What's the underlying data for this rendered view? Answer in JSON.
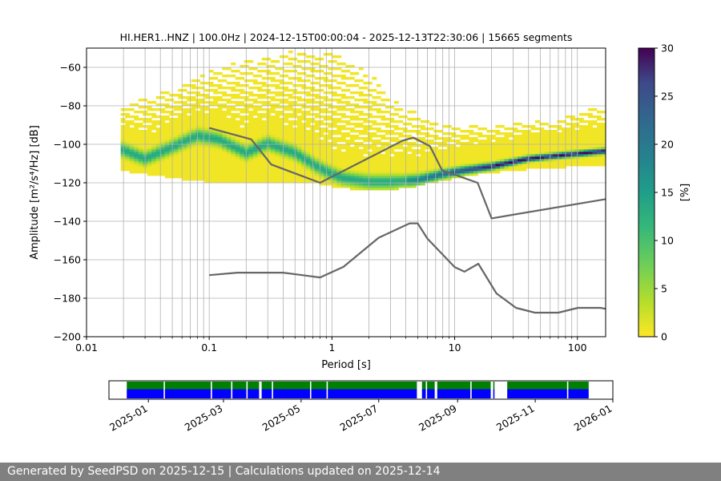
{
  "footer_text": "Generated by SeedPSD on 2025-12-15 | Calculations updated on 2025-12-14",
  "chart_data": {
    "type": "heatmap",
    "title": "HI.HER1..HNZ | 100.0Hz | 2024-12-15T00:00:04 - 2025-12-13T22:30:06 | 15665 segments",
    "xlabel": "Period [s]",
    "ylabel": "Amplitude [m²/s⁴/Hz] [dB]",
    "xscale": "log",
    "xlim": [
      0.01,
      170
    ],
    "ylim": [
      -200,
      -50
    ],
    "x_ticks": [
      0.01,
      0.1,
      1,
      10,
      100
    ],
    "x_tick_labels": [
      "0.01",
      "0.1",
      "1",
      "10",
      "100"
    ],
    "y_ticks": [
      -200,
      -180,
      -160,
      -140,
      -120,
      -100,
      -80,
      -60
    ],
    "y_tick_labels": [
      "−200",
      "−180",
      "−160",
      "−140",
      "−120",
      "−100",
      "−80",
      "−60"
    ],
    "grid": true,
    "colorbar": {
      "label": "[%]",
      "range": [
        0,
        30
      ],
      "ticks": [
        0,
        5,
        10,
        15,
        20,
        25,
        30
      ],
      "tick_labels": [
        "0",
        "5",
        "10",
        "15",
        "20",
        "25",
        "30"
      ],
      "colormap": "viridis_r"
    },
    "psd_mode": [
      [
        0.019,
        -103
      ],
      [
        0.03,
        -108
      ],
      [
        0.05,
        -102
      ],
      [
        0.08,
        -96
      ],
      [
        0.12,
        -98
      ],
      [
        0.2,
        -105
      ],
      [
        0.3,
        -100
      ],
      [
        0.5,
        -105
      ],
      [
        0.8,
        -113
      ],
      [
        1.2,
        -118
      ],
      [
        2,
        -120
      ],
      [
        3,
        -120
      ],
      [
        5,
        -119
      ],
      [
        8,
        -116
      ],
      [
        12,
        -114
      ],
      [
        20,
        -112
      ],
      [
        40,
        -108
      ],
      [
        80,
        -106
      ],
      [
        170,
        -104
      ]
    ],
    "psd_upper_envelope": [
      [
        0.019,
        -80
      ],
      [
        0.05,
        -72
      ],
      [
        0.1,
        -62
      ],
      [
        0.2,
        -56
      ],
      [
        0.5,
        -52
      ],
      [
        1,
        -53
      ],
      [
        2,
        -62
      ],
      [
        3,
        -75
      ],
      [
        5,
        -85
      ],
      [
        8,
        -90
      ],
      [
        15,
        -91
      ],
      [
        30,
        -90
      ],
      [
        60,
        -88
      ],
      [
        100,
        -84
      ],
      [
        170,
        -80
      ]
    ],
    "psd_lower_envelope": [
      [
        0.019,
        -113
      ],
      [
        0.05,
        -117
      ],
      [
        0.1,
        -119
      ],
      [
        0.3,
        -120
      ],
      [
        0.8,
        -120
      ],
      [
        1.5,
        -123
      ],
      [
        3,
        -123
      ],
      [
        5,
        -121
      ],
      [
        10,
        -117
      ],
      [
        20,
        -114
      ],
      [
        50,
        -112
      ],
      [
        100,
        -111
      ],
      [
        170,
        -110
      ]
    ],
    "noise_model_series": [
      {
        "values": [
          [
            0.1,
            -91.5
          ],
          [
            0.22,
            -97.4
          ],
          [
            0.32,
            -110.5
          ],
          [
            0.8,
            -120
          ],
          [
            3.8,
            -98
          ],
          [
            4.6,
            -96.5
          ],
          [
            6.3,
            -101
          ],
          [
            7.9,
            -113.5
          ],
          [
            15.4,
            -120
          ],
          [
            20,
            -138.5
          ],
          [
            170,
            -128.5
          ]
        ]
      },
      {
        "values": [
          [
            0.1,
            -168
          ],
          [
            0.17,
            -166.7
          ],
          [
            0.4,
            -166.7
          ],
          [
            0.8,
            -169.2
          ],
          [
            1.24,
            -163.7
          ],
          [
            2.4,
            -148.6
          ],
          [
            4.3,
            -141.1
          ],
          [
            5,
            -141.1
          ],
          [
            6,
            -149
          ],
          [
            10,
            -163.8
          ],
          [
            12,
            -166.2
          ],
          [
            15.6,
            -162.1
          ],
          [
            21.9,
            -177.5
          ],
          [
            31.6,
            -185
          ],
          [
            45,
            -187.5
          ],
          [
            70,
            -187.5
          ],
          [
            101,
            -185
          ],
          [
            154,
            -185
          ],
          [
            170,
            -185.5
          ]
        ]
      }
    ],
    "availability_bar": {
      "x_tick_labels": [
        "2025-01",
        "2025-03",
        "2025-05",
        "2025-07",
        "2025-09",
        "2025-11",
        "2026-01"
      ],
      "x_ticks": [
        "2025-01-01",
        "2025-03-01",
        "2025-05-01",
        "2025-07-01",
        "2025-09-01",
        "2025-11-01",
        "2026-01-01"
      ],
      "xlim": [
        "2024-12-01",
        "2026-01-01"
      ],
      "data_start": "2024-12-15",
      "data_end": "2025-12-13",
      "gaps": [
        [
          "2025-01-13",
          "2025-01-14"
        ],
        [
          "2025-02-19",
          "2025-02-20"
        ],
        [
          "2025-03-07",
          "2025-03-08"
        ],
        [
          "2025-03-19",
          "2025-03-20"
        ],
        [
          "2025-03-29",
          "2025-03-31"
        ],
        [
          "2025-04-08",
          "2025-04-09"
        ],
        [
          "2025-05-08",
          "2025-05-09"
        ],
        [
          "2025-05-21",
          "2025-05-22"
        ],
        [
          "2025-07-31",
          "2025-08-04"
        ],
        [
          "2025-08-07",
          "2025-08-08"
        ],
        [
          "2025-08-14",
          "2025-08-16"
        ],
        [
          "2025-09-11",
          "2025-09-12"
        ],
        [
          "2025-09-27",
          "2025-09-29"
        ],
        [
          "2025-09-30",
          "2025-10-10"
        ],
        [
          "2025-11-26",
          "2025-11-27"
        ]
      ],
      "colors": {
        "upper": "#008000",
        "lower": "#0000ff"
      }
    }
  }
}
